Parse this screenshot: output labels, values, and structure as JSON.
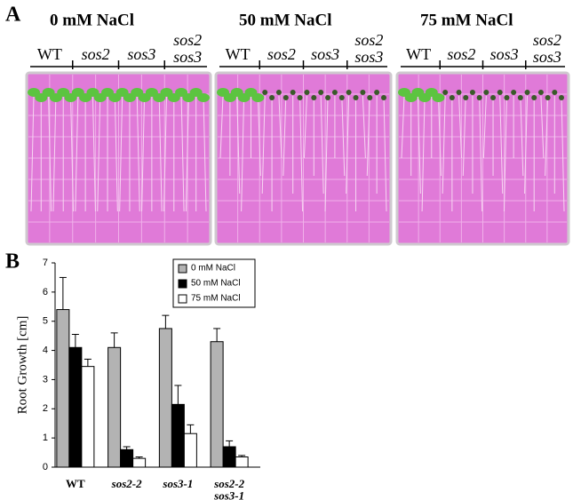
{
  "panel_a": {
    "label": "A",
    "genotypes": [
      "WT",
      "sos2",
      "sos3",
      "sos2\nsos3"
    ],
    "plates": [
      {
        "title": "0 mM NaCl"
      },
      {
        "title": "50 mM NaCl"
      },
      {
        "title": "75 mM NaCl"
      }
    ]
  },
  "chart_data": {
    "type": "bar",
    "label": "B",
    "y_label": "Root Growth [cm]",
    "categories": [
      "WT",
      "sos2-2",
      "sos3-1",
      "sos2-2\nsos3-1"
    ],
    "series": [
      {
        "name": "0 mM NaCl",
        "color": "#b3b3b3",
        "values": [
          5.4,
          4.1,
          4.75,
          4.3
        ],
        "errors": [
          1.1,
          0.5,
          0.45,
          0.45
        ]
      },
      {
        "name": "50 mM NaCl",
        "color": "#000000",
        "values": [
          4.1,
          0.6,
          2.15,
          0.7
        ],
        "errors": [
          0.45,
          0.1,
          0.65,
          0.2
        ]
      },
      {
        "name": "75 mM NaCl",
        "color": "#ffffff",
        "values": [
          3.45,
          0.3,
          1.15,
          0.35
        ],
        "errors": [
          0.25,
          0.05,
          0.3,
          0.05
        ]
      }
    ],
    "ylim": [
      0,
      7
    ],
    "yticks": [
      0,
      1,
      2,
      3,
      4,
      5,
      6,
      7
    ],
    "legend": "top-right"
  }
}
